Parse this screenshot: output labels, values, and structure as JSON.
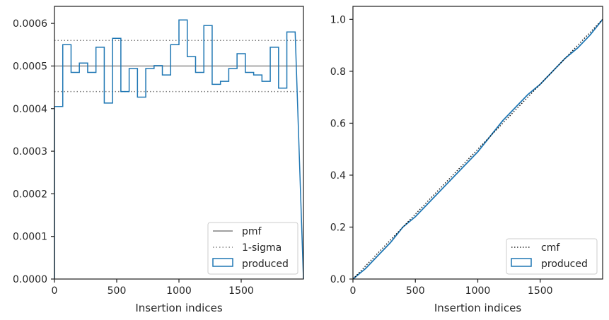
{
  "chart_data": [
    {
      "type": "step",
      "xlabel": "Insertion indices",
      "ylabel": "",
      "xlim": [
        0,
        2000
      ],
      "ylim": [
        0,
        0.00064
      ],
      "xticks": [
        "0",
        "500",
        "1000",
        "1500"
      ],
      "yticks": [
        "0.0000",
        "0.0001",
        "0.0002",
        "0.0003",
        "0.0004",
        "0.0005",
        "0.0006"
      ],
      "grid": false,
      "legend_position": "lower-right",
      "bin_width": 66.67,
      "series": [
        {
          "name": "produced",
          "style": "histogram-step",
          "color": "#1f77b4",
          "values": [
            0.000405,
            0.00055,
            0.000485,
            0.000507,
            0.000485,
            0.000544,
            0.000413,
            0.000565,
            0.00044,
            0.000494,
            0.000427,
            0.000494,
            0.000501,
            0.000479,
            0.00055,
            0.000608,
            0.000522,
            0.000485,
            0.000595,
            0.000457,
            0.000464,
            0.000494,
            0.000529,
            0.000485,
            0.000479,
            0.000464,
            0.000544,
            0.000448,
            0.00058
          ]
        },
        {
          "name": "pmf",
          "style": "solid",
          "color": "#808080",
          "y": 0.0005
        },
        {
          "name": "1-sigma",
          "style": "dotted",
          "color": "#808080",
          "y": [
            0.00044,
            0.00056
          ]
        }
      ],
      "legend": [
        "pmf",
        "1-sigma",
        "produced"
      ]
    },
    {
      "type": "line",
      "xlabel": "Insertion indices",
      "ylabel": "",
      "xlim": [
        0,
        2000
      ],
      "ylim": [
        0,
        1.05
      ],
      "xticks": [
        "0",
        "500",
        "1000",
        "1500"
      ],
      "yticks": [
        "0.0",
        "0.2",
        "0.4",
        "0.6",
        "0.8",
        "1.0"
      ],
      "grid": false,
      "legend_position": "lower-right",
      "series": [
        {
          "name": "cmf",
          "style": "dotted",
          "color": "#000000",
          "x": [
            0,
            2000
          ],
          "y": [
            0,
            1.0
          ]
        },
        {
          "name": "produced",
          "style": "step-outline",
          "color": "#1f77b4",
          "x": [
            0,
            100,
            200,
            300,
            400,
            500,
            600,
            700,
            800,
            900,
            1000,
            1100,
            1200,
            1300,
            1400,
            1500,
            1600,
            1700,
            1800,
            1900,
            2000
          ],
          "y": [
            0.0,
            0.04,
            0.09,
            0.14,
            0.2,
            0.24,
            0.29,
            0.34,
            0.39,
            0.44,
            0.49,
            0.55,
            0.61,
            0.66,
            0.71,
            0.75,
            0.8,
            0.85,
            0.89,
            0.94,
            1.0
          ]
        }
      ],
      "legend": [
        "cmf",
        "produced"
      ]
    }
  ]
}
